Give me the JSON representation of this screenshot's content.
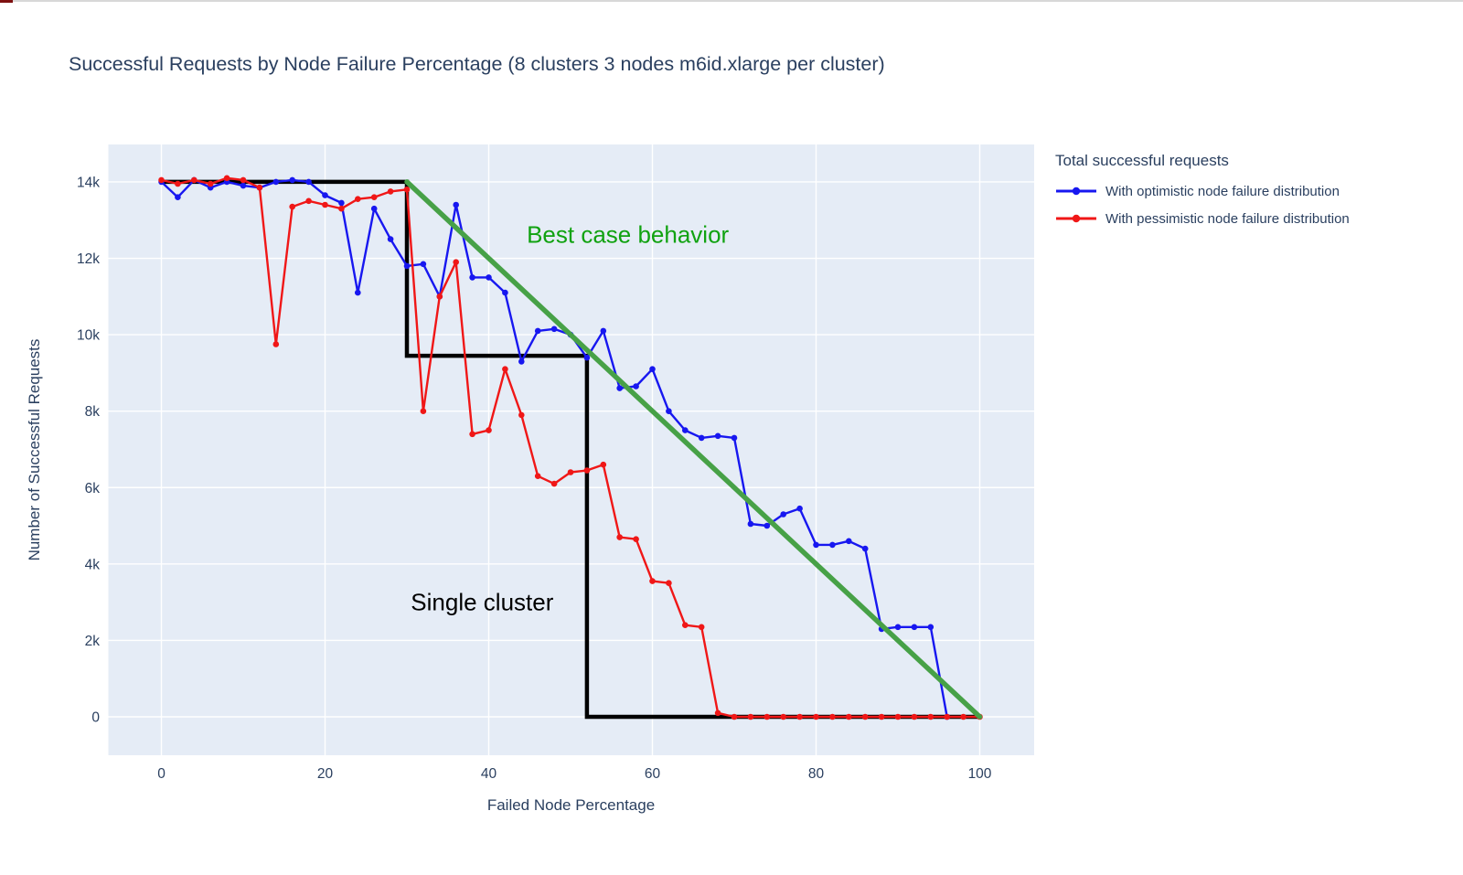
{
  "title": "Successful Requests by Node Failure Percentage (8 clusters 3 nodes m6id.xlarge per cluster)",
  "legend": {
    "title": "Total successful requests",
    "items": [
      {
        "label": "With optimistic node failure distribution",
        "color": "#1717f0"
      },
      {
        "label": "With pessimistic node failure distribution",
        "color": "#f01717"
      }
    ]
  },
  "chart_data": {
    "type": "line",
    "xlabel": "Failed Node Percentage",
    "ylabel": "Number of Successful Requests",
    "plot_bg": "#e5ecf6",
    "grid_color": "#ffffff",
    "text_color": "#2a3f5f",
    "x_ticks": {
      "values": [
        0,
        20,
        40,
        60,
        80,
        100
      ],
      "labels": [
        "0",
        "20",
        "40",
        "60",
        "80",
        "100"
      ]
    },
    "y_ticks": {
      "values": [
        0,
        2000,
        4000,
        6000,
        8000,
        10000,
        12000,
        14000
      ],
      "labels": [
        "0",
        "2k",
        "4k",
        "6k",
        "8k",
        "10k",
        "12k",
        "14k"
      ]
    },
    "x_range": [
      -6.5,
      106.5
    ],
    "y_range": [
      -1000,
      15000
    ],
    "x": [
      0,
      2,
      4,
      6,
      8,
      10,
      12,
      14,
      16,
      18,
      20,
      22,
      24,
      26,
      28,
      30,
      32,
      34,
      36,
      38,
      40,
      42,
      44,
      46,
      48,
      50,
      52,
      54,
      56,
      58,
      60,
      62,
      64,
      66,
      68,
      70,
      72,
      74,
      76,
      78,
      80,
      82,
      84,
      86,
      88,
      90,
      92,
      94,
      96,
      98,
      100
    ],
    "series": [
      {
        "name": "With optimistic node failure distribution",
        "color": "#1717f0",
        "values": [
          14000,
          13600,
          14050,
          13850,
          14000,
          13900,
          13850,
          14000,
          14050,
          14000,
          13650,
          13450,
          11100,
          13300,
          12500,
          11800,
          11850,
          11000,
          13400,
          11500,
          11500,
          11100,
          9300,
          10100,
          10150,
          10000,
          9400,
          10100,
          8600,
          8650,
          9100,
          8000,
          7500,
          7300,
          7350,
          7300,
          5050,
          5000,
          5300,
          5450,
          4500,
          4500,
          4600,
          4400,
          2300,
          2350,
          2350,
          2350,
          0,
          null,
          null
        ]
      },
      {
        "name": "With pessimistic node failure distribution",
        "color": "#f01717",
        "values": [
          14050,
          13950,
          14050,
          13950,
          14100,
          14050,
          13850,
          9750,
          13350,
          13500,
          13400,
          13300,
          13550,
          13600,
          13750,
          13800,
          8000,
          11000,
          11900,
          7400,
          7500,
          9100,
          7900,
          6300,
          6100,
          6400,
          6450,
          6600,
          4700,
          4650,
          3550,
          3500,
          2400,
          2350,
          100,
          0,
          0,
          0,
          0,
          0,
          0,
          0,
          0,
          0,
          0,
          0,
          0,
          0,
          0,
          0,
          0
        ]
      }
    ],
    "overlays": [
      {
        "name": "Single cluster",
        "color": "#000000",
        "width": 4.5,
        "layer": "below",
        "x": [
          0,
          30,
          30,
          52,
          52,
          100
        ],
        "y": [
          14000,
          14000,
          9450,
          9450,
          0,
          0
        ]
      },
      {
        "name": "Best case behavior",
        "color": "#47a147",
        "width": 5.5,
        "layer": "top",
        "x": [
          30,
          100
        ],
        "y": [
          14000,
          0
        ]
      }
    ],
    "annotations": [
      {
        "text": "Best case behavior",
        "color": "#11a211",
        "x": 57,
        "y": 12600
      },
      {
        "text": "Single cluster",
        "color": "#000000",
        "x": 39.2,
        "y": 3000
      }
    ]
  }
}
